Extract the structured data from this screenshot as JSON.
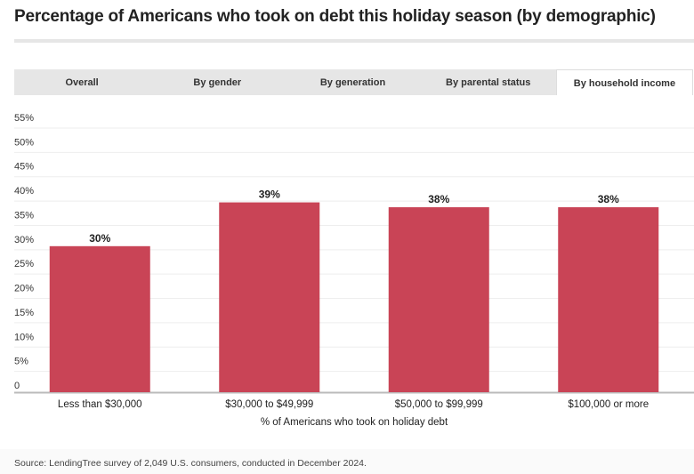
{
  "title": "Percentage of Americans who took on debt this holiday season (by demographic)",
  "tabs": [
    "Overall",
    "By gender",
    "By generation",
    "By parental status",
    "By household income"
  ],
  "active_tab": 4,
  "source": "Source: LendingTree survey of 2,049 U.S. consumers, conducted in December 2024.",
  "colors": {
    "bar": "#c94456",
    "grid": "#eeeeee",
    "axis": "#bbbbbb"
  },
  "chart_data": {
    "type": "bar",
    "title": "Percentage of Americans who took on debt this holiday season (by demographic)",
    "categories": [
      "Less than $30,000",
      "$30,000 to $49,999",
      "$50,000 to $99,999",
      "$100,000 or more"
    ],
    "values": [
      30,
      39,
      38,
      38
    ],
    "data_labels": [
      "30%",
      "39%",
      "38%",
      "38%"
    ],
    "xlabel": "% of Americans who took on holiday debt",
    "ylabel": "",
    "ylim": [
      0,
      55
    ],
    "yticks": [
      "0",
      "5%",
      "10%",
      "15%",
      "20%",
      "25%",
      "30%",
      "35%",
      "40%",
      "45%",
      "50%",
      "55%"
    ],
    "grid": true
  }
}
